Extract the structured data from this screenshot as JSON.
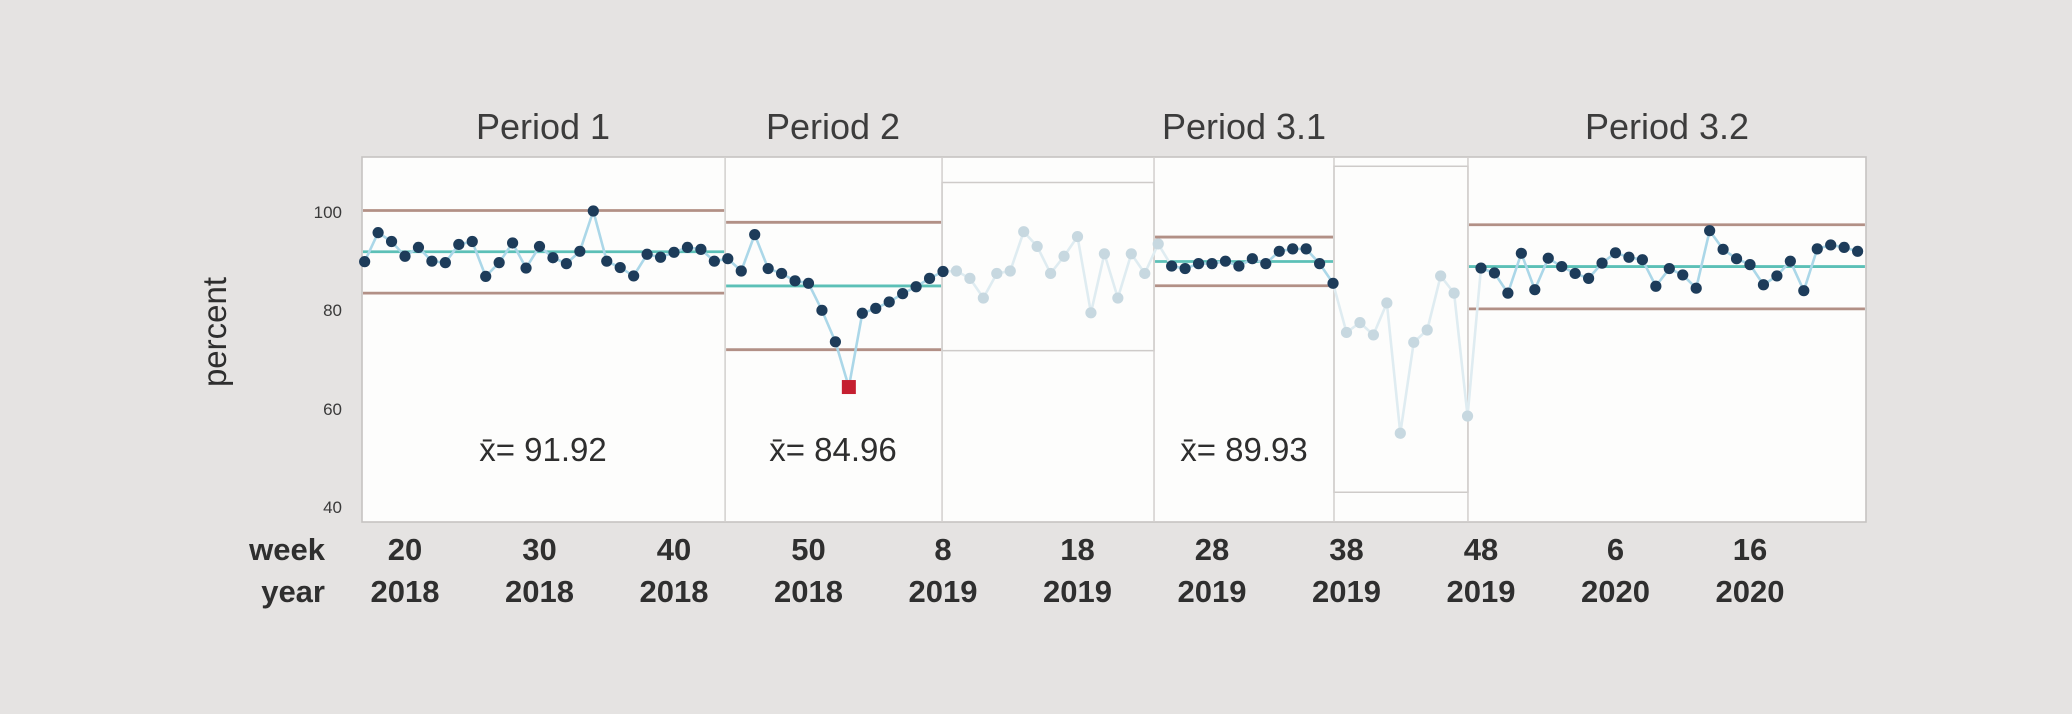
{
  "colors": {
    "background": "#e5e3e2",
    "panel_fill": "#fdfdfc",
    "panel_border": "#c6c3c1",
    "excluded_box_border": "#cecbc9",
    "separator": "#d2cfcd",
    "point": "#1d3c5a",
    "connector_line": "#abd7e8",
    "center_line": "#5cc0b7",
    "limit_line": "#b29086",
    "out_of_control_point": "#c51f30",
    "faded_point": "#c7d8e0",
    "faded_line": "#dfecf1",
    "text": "#343434"
  },
  "chart_data": {
    "type": "line",
    "subtype": "individuals-control-chart-with-stages",
    "yaxis": {
      "label": "percent",
      "ticks": [
        100,
        80,
        60,
        40
      ],
      "range_shown": [
        40,
        100
      ]
    },
    "xaxis": {
      "week_row_label": "week",
      "year_row_label": "year",
      "ticks": [
        {
          "week": "20",
          "year": "2018",
          "week_idx": 0
        },
        {
          "week": "30",
          "year": "2018",
          "week_idx": 10
        },
        {
          "week": "40",
          "year": "2018",
          "week_idx": 20
        },
        {
          "week": "50",
          "year": "2018",
          "week_idx": 30
        },
        {
          "week": "8",
          "year": "2019",
          "week_idx": 40
        },
        {
          "week": "18",
          "year": "2019",
          "week_idx": 50
        },
        {
          "week": "28",
          "year": "2019",
          "week_idx": 60
        },
        {
          "week": "38",
          "year": "2019",
          "week_idx": 70
        },
        {
          "week": "48",
          "year": "2019",
          "week_idx": 80
        },
        {
          "week": "6",
          "year": "2020",
          "week_idx": 90
        },
        {
          "week": "16",
          "year": "2020",
          "week_idx": 100
        }
      ]
    },
    "stage_boundaries_week_idx": [
      -3.2,
      23.8,
      39.93,
      55.69,
      69.07,
      79.03,
      108.62
    ],
    "periods": [
      {
        "label": "Period 1",
        "mean_label": "x̄= 91.92",
        "mean": 91.92,
        "ucl": 100.3,
        "lcl": 83.5,
        "excluded": false,
        "start_idx": -3,
        "values": [
          89.9,
          95.8,
          94.0,
          91.0,
          92.8,
          90.0,
          89.7,
          93.4,
          94.0,
          86.9,
          89.7,
          93.7,
          88.6,
          93.0,
          90.7,
          89.5,
          92.0,
          100.2,
          90.0,
          88.7,
          87.0,
          91.4,
          90.8,
          91.8,
          92.8,
          92.4,
          90.0
        ]
      },
      {
        "label": "Period 2",
        "mean_label": "x̄= 84.96",
        "mean": 84.96,
        "ucl": 97.9,
        "lcl": 72.0,
        "excluded": false,
        "start_idx": 24,
        "red_index": 9,
        "values": [
          90.5,
          88.0,
          95.4,
          88.5,
          87.5,
          86.0,
          85.5,
          80.0,
          73.6,
          64.4,
          79.4,
          80.4,
          81.7,
          83.4,
          84.8,
          86.5,
          87.9
        ]
      },
      {
        "label": "",
        "mean_label": "",
        "excluded": true,
        "start_idx": 41,
        "box_top_value": 106.0,
        "box_bottom_value": 71.8,
        "values": [
          88.0,
          86.5,
          82.5,
          87.5,
          88.0,
          96.0,
          93.0,
          87.5,
          91.0,
          95.0,
          79.5,
          91.5,
          82.5,
          91.5,
          87.5,
          93.5
        ]
      },
      {
        "label": "Period 3.1",
        "mean_label": "x̄= 89.93",
        "mean": 89.93,
        "ucl": 94.9,
        "lcl": 85.0,
        "excluded": false,
        "start_idx": 57,
        "values": [
          89.0,
          88.5,
          89.5,
          89.5,
          90.0,
          89.0,
          90.5,
          89.5,
          92.0,
          92.5,
          92.5,
          89.5,
          85.5
        ]
      },
      {
        "label": "",
        "mean_label": "",
        "excluded": true,
        "start_idx": 70,
        "box_top_value": 109.3,
        "box_bottom_value": 43.0,
        "values": [
          75.5,
          77.5,
          75.0,
          81.5,
          55.0,
          73.5,
          76.0,
          87.0,
          83.5,
          58.5
        ]
      },
      {
        "label": "Period 3.2",
        "mean_label": "",
        "mean": 88.9,
        "ucl": 97.4,
        "lcl": 80.3,
        "excluded": false,
        "start_idx": 80,
        "values": [
          88.6,
          87.6,
          83.5,
          91.6,
          84.2,
          90.6,
          88.9,
          87.5,
          86.5,
          89.6,
          91.7,
          90.8,
          90.3,
          84.9,
          88.5,
          87.2,
          84.5,
          96.2,
          92.4,
          90.5,
          89.3,
          85.2,
          87.0,
          90.0,
          84.0,
          92.5,
          93.3,
          92.8,
          92.0
        ]
      }
    ]
  }
}
